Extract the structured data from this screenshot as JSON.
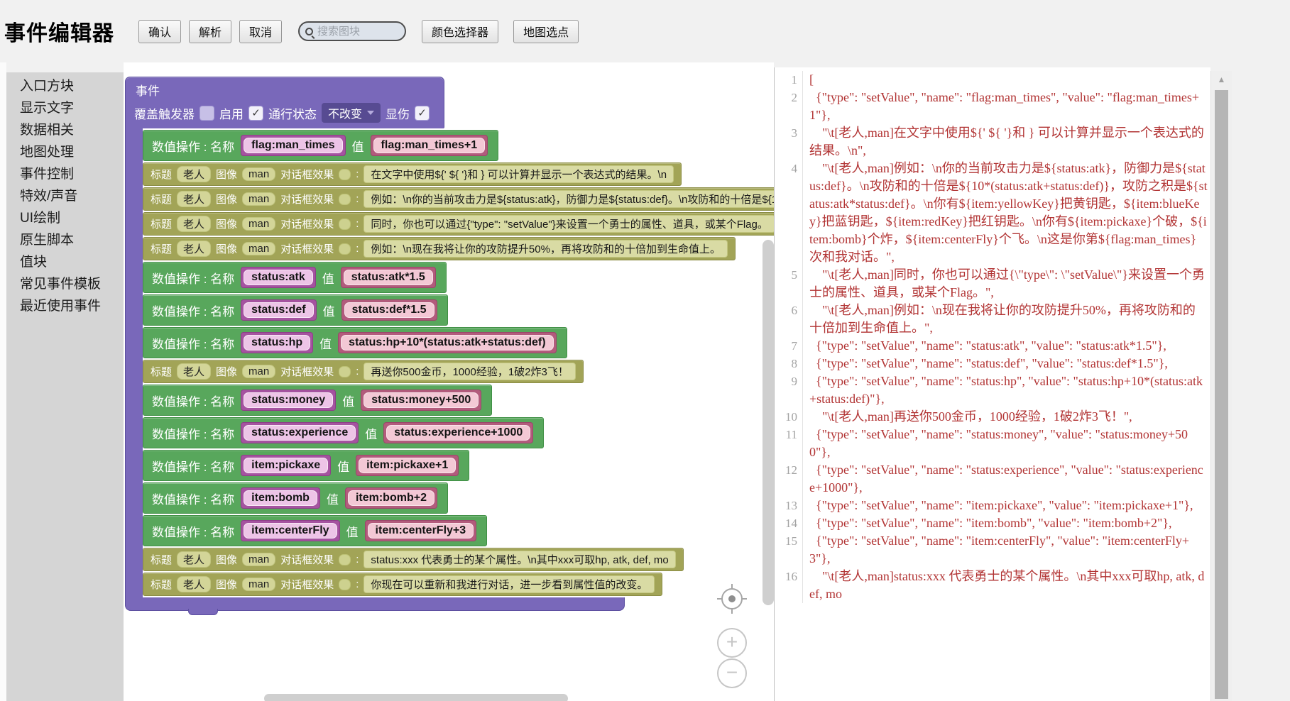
{
  "colors": {
    "event_purple": "#7968ba",
    "setvalue_green": "#58a75c",
    "text_olive": "#a2a457",
    "name_field_magenta": "#a553a0",
    "value_field_rose": "#b25b7c",
    "code_text_red": "#b23434",
    "code_bracket_green": "#2f9e44"
  },
  "icons": {
    "search": "magnifier",
    "dropdown_arrow": "triangle-down",
    "locate": "crosshair-target",
    "zoom_in_glyph": "+",
    "zoom_out_glyph": "−",
    "scroll_up_glyph": "▲"
  },
  "header": {
    "title": "事件编辑器",
    "confirm": "确认",
    "parse": "解析",
    "cancel": "取消",
    "search_placeholder": "搜索图块",
    "color_picker": "颜色选择器",
    "map_pick": "地图选点"
  },
  "sidebar": {
    "items": [
      "入口方块",
      "显示文字",
      "数据相关",
      "地图处理",
      "事件控制",
      "特效/声音",
      "UI绘制",
      "原生脚本",
      "值块",
      "常见事件模板",
      "最近使用事件"
    ]
  },
  "event_block": {
    "title": "事件",
    "props": {
      "trigger": {
        "label": "覆盖触发器",
        "checked": false
      },
      "enable": {
        "label": "启用",
        "checked": true
      },
      "pass": {
        "label": "通行状态",
        "value": "不改变"
      },
      "damage": {
        "label": "显伤",
        "checked": true
      }
    },
    "labels": {
      "setvalue": "数值操作 : 名称",
      "value": "值",
      "title": "标题",
      "image": "图像",
      "effect": "对话框效果",
      "colon": ":"
    },
    "children": [
      {
        "kind": "setvalue",
        "name": "flag:man_times",
        "value": "flag:man_times+1"
      },
      {
        "kind": "text",
        "speaker": "老人",
        "image": "man",
        "text": "在文字中使用${' ${ '}和 } 可以计算并显示一个表达式的结果。\\n"
      },
      {
        "kind": "text",
        "speaker": "老人",
        "image": "man",
        "text": "例如：\\n你的当前攻击力是${status:atk}，防御力是${status:def}。\\n攻防和的十倍是${10*(status:atk+status:def)}，攻防之积是${status:atk*status:def}。\\n你有${item:yellowKey}把黄钥匙，${item:blueKey}把蓝钥匙，${item:redKey}把红钥匙。"
      },
      {
        "kind": "text",
        "speaker": "老人",
        "image": "man",
        "text": "同时，你也可以通过{\"type\": \"setValue\"}来设置一个勇士的属性、道具，或某个Flag。"
      },
      {
        "kind": "text",
        "speaker": "老人",
        "image": "man",
        "text": "例如：\\n现在我将让你的攻防提升50%，再将攻防和的十倍加到生命值上。"
      },
      {
        "kind": "setvalue",
        "name": "status:atk",
        "value": "status:atk*1.5"
      },
      {
        "kind": "setvalue",
        "name": "status:def",
        "value": "status:def*1.5"
      },
      {
        "kind": "setvalue",
        "name": "status:hp",
        "value": "status:hp+10*(status:atk+status:def)"
      },
      {
        "kind": "text",
        "speaker": "老人",
        "image": "man",
        "text": "再送你500金币，1000经验，1破2炸3飞！"
      },
      {
        "kind": "setvalue",
        "name": "status:money",
        "value": "status:money+500"
      },
      {
        "kind": "setvalue",
        "name": "status:experience",
        "value": "status:experience+1000"
      },
      {
        "kind": "setvalue",
        "name": "item:pickaxe",
        "value": "item:pickaxe+1"
      },
      {
        "kind": "setvalue",
        "name": "item:bomb",
        "value": "item:bomb+2"
      },
      {
        "kind": "setvalue",
        "name": "item:centerFly",
        "value": "item:centerFly+3"
      },
      {
        "kind": "text",
        "speaker": "老人",
        "image": "man",
        "text": "status:xxx 代表勇士的某个属性。\\n其中xxx可取hp, atk, def, mo"
      },
      {
        "kind": "text",
        "speaker": "老人",
        "image": "man",
        "text": "你现在可以重新和我进行对话，进一步看到属性值的改变。"
      }
    ]
  },
  "code_panel": {
    "lines": [
      {
        "no": 1,
        "text": "["
      },
      {
        "no": 2,
        "text": "  {\"type\": \"setValue\", \"name\": \"flag:man_times\", \"value\": \"flag:man_times+1\"},"
      },
      {
        "no": 3,
        "text": "    \"\\t[老人,man]在文字中使用${' ${ '}和 } 可以计算并显示一个表达式的结果。\\n\","
      },
      {
        "no": 4,
        "text": "    \"\\t[老人,man]例如：\\n你的当前攻击力是${status:atk}，防御力是${status:def}。\\n攻防和的十倍是${10*(status:atk+status:def)}，攻防之积是${status:atk*status:def}。\\n你有${item:yellowKey}把黄钥匙，${item:blueKey}把蓝钥匙，${item:redKey}把红钥匙。\\n你有${item:pickaxe}个破，${item:bomb}个炸，${item:centerFly}个飞。\\n这是你第${flag:man_times}次和我对话。\","
      },
      {
        "no": 5,
        "text": "    \"\\t[老人,man]同时，你也可以通过{\\\"type\\\": \\\"setValue\\\"}来设置一个勇士的属性、道具，或某个Flag。\","
      },
      {
        "no": 6,
        "text": "    \"\\t[老人,man]例如：\\n现在我将让你的攻防提升50%，再将攻防和的十倍加到生命值上。\","
      },
      {
        "no": 7,
        "text": "  {\"type\": \"setValue\", \"name\": \"status:atk\", \"value\": \"status:atk*1.5\"},"
      },
      {
        "no": 8,
        "text": "  {\"type\": \"setValue\", \"name\": \"status:def\", \"value\": \"status:def*1.5\"},"
      },
      {
        "no": 9,
        "text": "  {\"type\": \"setValue\", \"name\": \"status:hp\", \"value\": \"status:hp+10*(status:atk+status:def)\"},"
      },
      {
        "no": 10,
        "text": "    \"\\t[老人,man]再送你500金币，1000经验，1破2炸3飞！\","
      },
      {
        "no": 11,
        "text": "  {\"type\": \"setValue\", \"name\": \"status:money\", \"value\": \"status:money+500\"},"
      },
      {
        "no": 12,
        "text": "  {\"type\": \"setValue\", \"name\": \"status:experience\", \"value\": \"status:experience+1000\"},"
      },
      {
        "no": 13,
        "text": "  {\"type\": \"setValue\", \"name\": \"item:pickaxe\", \"value\": \"item:pickaxe+1\"},"
      },
      {
        "no": 14,
        "text": "  {\"type\": \"setValue\", \"name\": \"item:bomb\", \"value\": \"item:bomb+2\"},"
      },
      {
        "no": 15,
        "text": "  {\"type\": \"setValue\", \"name\": \"item:centerFly\", \"value\": \"item:centerFly+3\"},"
      },
      {
        "no": 16,
        "text": "    \"\\t[老人,man]status:xxx 代表勇士的某个属性。\\n其中xxx可取hp, atk, def, mo"
      }
    ]
  }
}
